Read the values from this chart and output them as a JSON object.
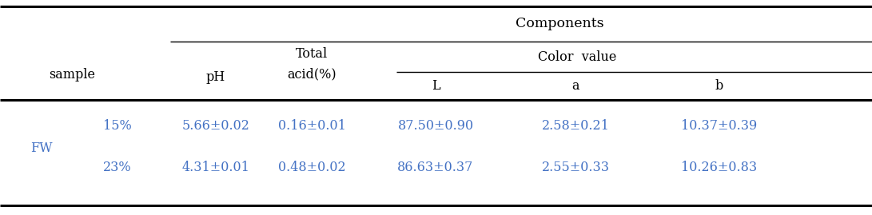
{
  "title": "Components",
  "col_headers": {
    "sample": "sample",
    "ph": "pH",
    "total_acid_line1": "Total",
    "total_acid_line2": "acid(%)",
    "color_value": "Color  value",
    "L": "L",
    "a": "a",
    "b": "b"
  },
  "rows": [
    {
      "group": "FW",
      "sub": "15%",
      "ph": "5.66±0.02",
      "total_acid": "0.16±0.01",
      "L": "87.50±0.90",
      "a": "2.58±0.21",
      "b": "10.37±0.39"
    },
    {
      "group": "FW",
      "sub": "23%",
      "ph": "4.31±0.01",
      "total_acid": "0.48±0.02",
      "L": "86.63±0.37",
      "a": "2.55±0.33",
      "b": "10.26±0.83"
    }
  ],
  "text_color": "#4472c4",
  "header_color": "#000000",
  "bg_color": "#ffffff",
  "font_size": 11.5,
  "header_font_size": 11.5
}
